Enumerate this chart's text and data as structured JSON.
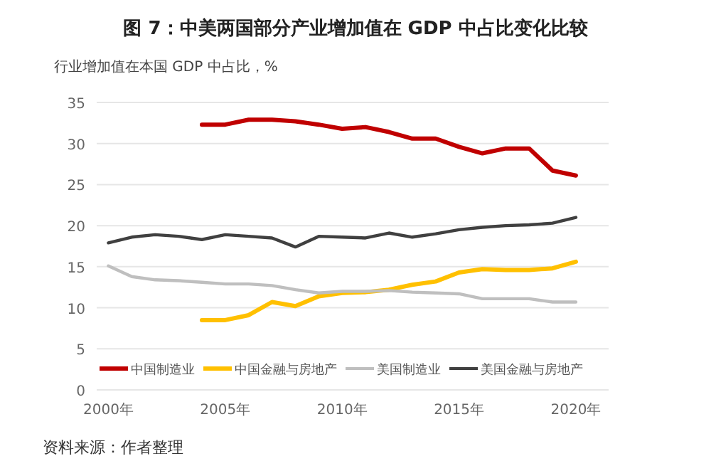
{
  "chart_data": {
    "type": "line",
    "title": "图 7：中美两国部分产业增加值在 GDP 中占比变化比较",
    "subtitle": "行业增加值在本国 GDP 中占比，%",
    "annotations": [
      "资料来源：作者整理"
    ],
    "x": [
      2000,
      2001,
      2002,
      2003,
      2004,
      2005,
      2006,
      2007,
      2008,
      2009,
      2010,
      2011,
      2012,
      2013,
      2014,
      2015,
      2016,
      2017,
      2018,
      2019,
      2020
    ],
    "series": [
      {
        "name": "中国制造业",
        "color": "#c00000",
        "values": [
          null,
          null,
          null,
          null,
          32.3,
          32.3,
          32.9,
          32.9,
          32.7,
          32.3,
          31.8,
          32.0,
          31.4,
          30.6,
          30.6,
          29.6,
          28.8,
          29.4,
          29.4,
          26.7,
          26.1
        ]
      },
      {
        "name": "中国金融与房地产",
        "color": "#ffc000",
        "values": [
          null,
          null,
          null,
          null,
          8.5,
          8.5,
          9.1,
          10.7,
          10.2,
          11.4,
          11.8,
          11.9,
          12.2,
          12.8,
          13.2,
          14.3,
          14.7,
          14.6,
          14.6,
          14.8,
          15.6
        ]
      },
      {
        "name": "美国制造业",
        "color": "#bfbfbf",
        "values": [
          15.1,
          13.8,
          13.4,
          13.3,
          13.1,
          12.9,
          12.9,
          12.7,
          12.2,
          11.8,
          12.0,
          12.0,
          12.1,
          11.9,
          11.8,
          11.7,
          11.1,
          11.1,
          11.1,
          10.7,
          10.7
        ]
      },
      {
        "name": "美国金融与房地产",
        "color": "#404040",
        "values": [
          17.9,
          18.6,
          18.9,
          18.7,
          18.3,
          18.9,
          18.7,
          18.5,
          17.4,
          18.7,
          18.6,
          18.5,
          19.1,
          18.6,
          19.0,
          19.5,
          19.8,
          20.0,
          20.1,
          20.3,
          21.0
        ]
      }
    ],
    "xlim": [
      1999.5,
      2021.4
    ],
    "xticks": [
      {
        "value": 2000,
        "label": "2000年"
      },
      {
        "value": 2005,
        "label": "2005年"
      },
      {
        "value": 2010,
        "label": "2010年"
      },
      {
        "value": 2015,
        "label": "2015年"
      },
      {
        "value": 2020,
        "label": "2020年"
      }
    ],
    "ylim": [
      0,
      35
    ],
    "yticks": [
      0,
      5,
      10,
      15,
      20,
      25,
      30,
      35
    ],
    "grid": "y",
    "legend": "bottom",
    "marker": "none",
    "line_style": "solid"
  }
}
